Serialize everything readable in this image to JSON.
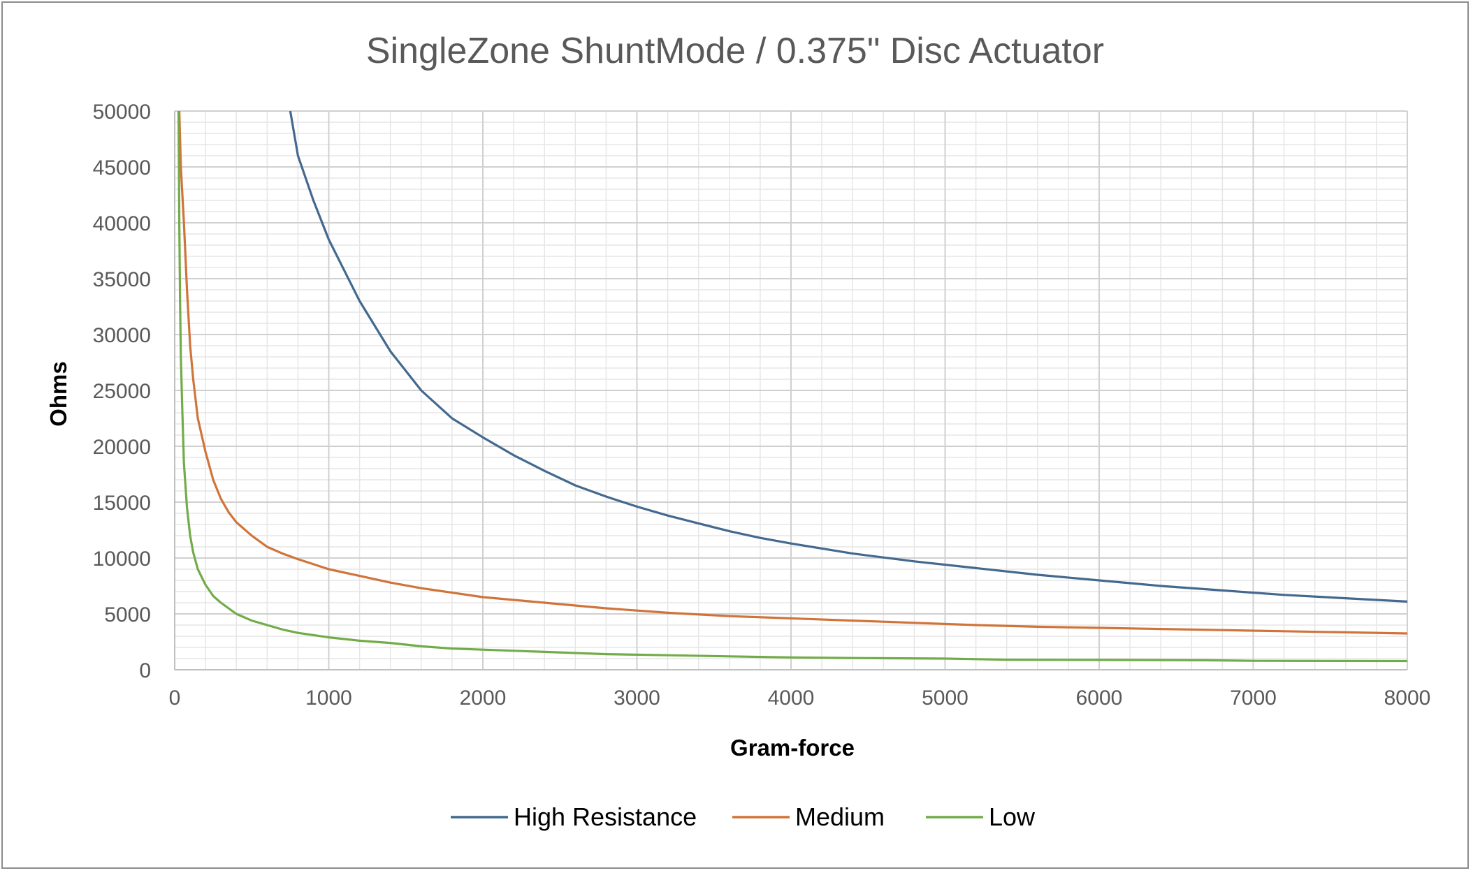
{
  "chart_data": {
    "type": "line",
    "title": "SingleZone ShuntMode / 0.375\" Disc Actuator",
    "xlabel": "Gram-force",
    "ylabel": "Ohms",
    "xlim": [
      0,
      8000
    ],
    "ylim": [
      0,
      50000
    ],
    "x_ticks": [
      "0",
      "1000",
      "2000",
      "3000",
      "4000",
      "5000",
      "6000",
      "7000",
      "8000"
    ],
    "y_ticks": [
      "0",
      "5000",
      "10000",
      "15000",
      "20000",
      "25000",
      "30000",
      "35000",
      "40000",
      "45000",
      "50000"
    ],
    "x_minor_step": 200,
    "y_minor_step": 1000,
    "legend_position": "bottom",
    "series": [
      {
        "name": "High Resistance",
        "color": "#44698f",
        "points": [
          [
            750,
            50000
          ],
          [
            800,
            46000
          ],
          [
            900,
            42000
          ],
          [
            1000,
            38500
          ],
          [
            1200,
            33000
          ],
          [
            1400,
            28500
          ],
          [
            1600,
            25000
          ],
          [
            1800,
            22500
          ],
          [
            2000,
            20800
          ],
          [
            2200,
            19200
          ],
          [
            2400,
            17800
          ],
          [
            2600,
            16500
          ],
          [
            2800,
            15500
          ],
          [
            3000,
            14600
          ],
          [
            3200,
            13800
          ],
          [
            3400,
            13100
          ],
          [
            3600,
            12400
          ],
          [
            3800,
            11800
          ],
          [
            4000,
            11300
          ],
          [
            4400,
            10400
          ],
          [
            4800,
            9700
          ],
          [
            5200,
            9100
          ],
          [
            5600,
            8500
          ],
          [
            6000,
            8000
          ],
          [
            6400,
            7500
          ],
          [
            6800,
            7100
          ],
          [
            7200,
            6700
          ],
          [
            7600,
            6400
          ],
          [
            8000,
            6100
          ]
        ]
      },
      {
        "name": "Medium",
        "color": "#d0743a",
        "points": [
          [
            30,
            50000
          ],
          [
            40,
            45000
          ],
          [
            60,
            40000
          ],
          [
            80,
            34000
          ],
          [
            100,
            29000
          ],
          [
            120,
            26000
          ],
          [
            150,
            22500
          ],
          [
            200,
            19500
          ],
          [
            250,
            17000
          ],
          [
            300,
            15300
          ],
          [
            350,
            14100
          ],
          [
            400,
            13200
          ],
          [
            500,
            12000
          ],
          [
            600,
            11000
          ],
          [
            700,
            10400
          ],
          [
            800,
            9900
          ],
          [
            1000,
            9000
          ],
          [
            1200,
            8400
          ],
          [
            1400,
            7800
          ],
          [
            1600,
            7300
          ],
          [
            1800,
            6900
          ],
          [
            2000,
            6500
          ],
          [
            2400,
            6000
          ],
          [
            2800,
            5500
          ],
          [
            3200,
            5100
          ],
          [
            3600,
            4800
          ],
          [
            4000,
            4600
          ],
          [
            4400,
            4400
          ],
          [
            4800,
            4200
          ],
          [
            5200,
            4000
          ],
          [
            5600,
            3850
          ],
          [
            6000,
            3750
          ],
          [
            6400,
            3650
          ],
          [
            6800,
            3550
          ],
          [
            7200,
            3450
          ],
          [
            7600,
            3350
          ],
          [
            8000,
            3250
          ]
        ]
      },
      {
        "name": "Low",
        "color": "#72ac48",
        "points": [
          [
            25,
            50000
          ],
          [
            30,
            40000
          ],
          [
            35,
            33000
          ],
          [
            40,
            28000
          ],
          [
            50,
            23000
          ],
          [
            60,
            18500
          ],
          [
            80,
            14500
          ],
          [
            100,
            12000
          ],
          [
            120,
            10500
          ],
          [
            150,
            9000
          ],
          [
            200,
            7600
          ],
          [
            250,
            6600
          ],
          [
            300,
            6000
          ],
          [
            400,
            5000
          ],
          [
            500,
            4400
          ],
          [
            600,
            4000
          ],
          [
            700,
            3600
          ],
          [
            800,
            3300
          ],
          [
            1000,
            2900
          ],
          [
            1200,
            2600
          ],
          [
            1400,
            2400
          ],
          [
            1600,
            2100
          ],
          [
            1800,
            1900
          ],
          [
            2000,
            1800
          ],
          [
            2400,
            1600
          ],
          [
            2800,
            1400
          ],
          [
            3200,
            1300
          ],
          [
            3600,
            1200
          ],
          [
            4000,
            1100
          ],
          [
            4400,
            1050
          ],
          [
            5000,
            1000
          ],
          [
            5400,
            900
          ],
          [
            6000,
            880
          ],
          [
            6700,
            850
          ],
          [
            7000,
            800
          ],
          [
            8000,
            780
          ]
        ]
      }
    ]
  }
}
